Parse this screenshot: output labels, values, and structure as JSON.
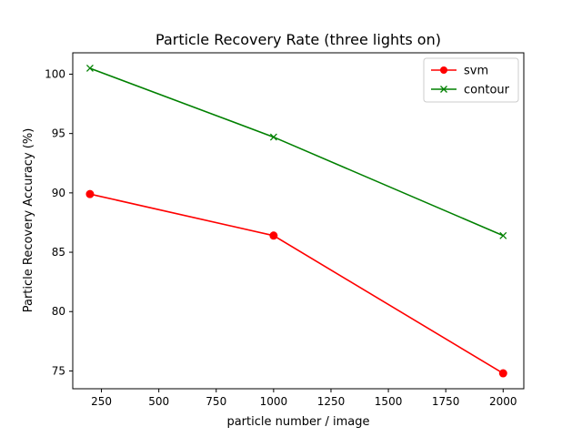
{
  "chart_data": {
    "type": "line",
    "title": "Particle Recovery Rate (three lights on)",
    "xlabel": "particle number / image",
    "ylabel": "Particle Recovery Accuracy (%)",
    "x": [
      200,
      1000,
      2000
    ],
    "xlim": [
      125,
      2090
    ],
    "ylim": [
      73.5,
      101.8
    ],
    "xticks": [
      250,
      500,
      750,
      1000,
      1250,
      1500,
      1750,
      2000
    ],
    "yticks": [
      75,
      80,
      85,
      90,
      95,
      100
    ],
    "grid": false,
    "legend_position": "top-right",
    "series": [
      {
        "name": "svm",
        "values": [
          89.9,
          86.4,
          74.8
        ],
        "color": "#ff0000",
        "marker": "circle"
      },
      {
        "name": "contour",
        "values": [
          100.5,
          94.7,
          86.4
        ],
        "color": "#008000",
        "marker": "x"
      }
    ]
  }
}
